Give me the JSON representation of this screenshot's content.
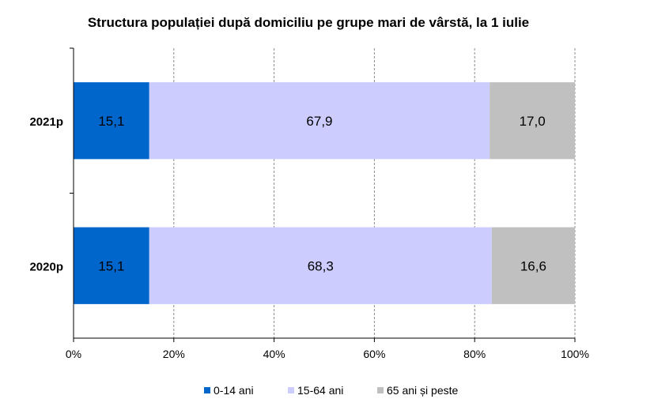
{
  "chart_data": {
    "type": "bar",
    "orientation": "horizontal",
    "stacked": "percent",
    "title": "Structura populației după domiciliu pe grupe mari de vârstă, la 1 iulie",
    "categories": [
      "2021p",
      "2020p"
    ],
    "series": [
      {
        "name": "0-14 ani",
        "values": [
          15.1,
          15.1
        ],
        "labels": [
          "15,1",
          "15,1"
        ],
        "color": "#0066cc"
      },
      {
        "name": "15-64 ani",
        "values": [
          67.9,
          68.3
        ],
        "labels": [
          "67,9",
          "68,3"
        ],
        "color": "#ccccff"
      },
      {
        "name": "65 ani și peste",
        "values": [
          17.0,
          16.6
        ],
        "labels": [
          "17,0",
          "16,6"
        ],
        "color": "#c0c0c0"
      }
    ],
    "x_ticks": [
      "0%",
      "20%",
      "40%",
      "60%",
      "80%",
      "100%"
    ],
    "xlim": [
      0,
      100
    ],
    "grid": "vertical dashed",
    "legend_position": "bottom"
  }
}
